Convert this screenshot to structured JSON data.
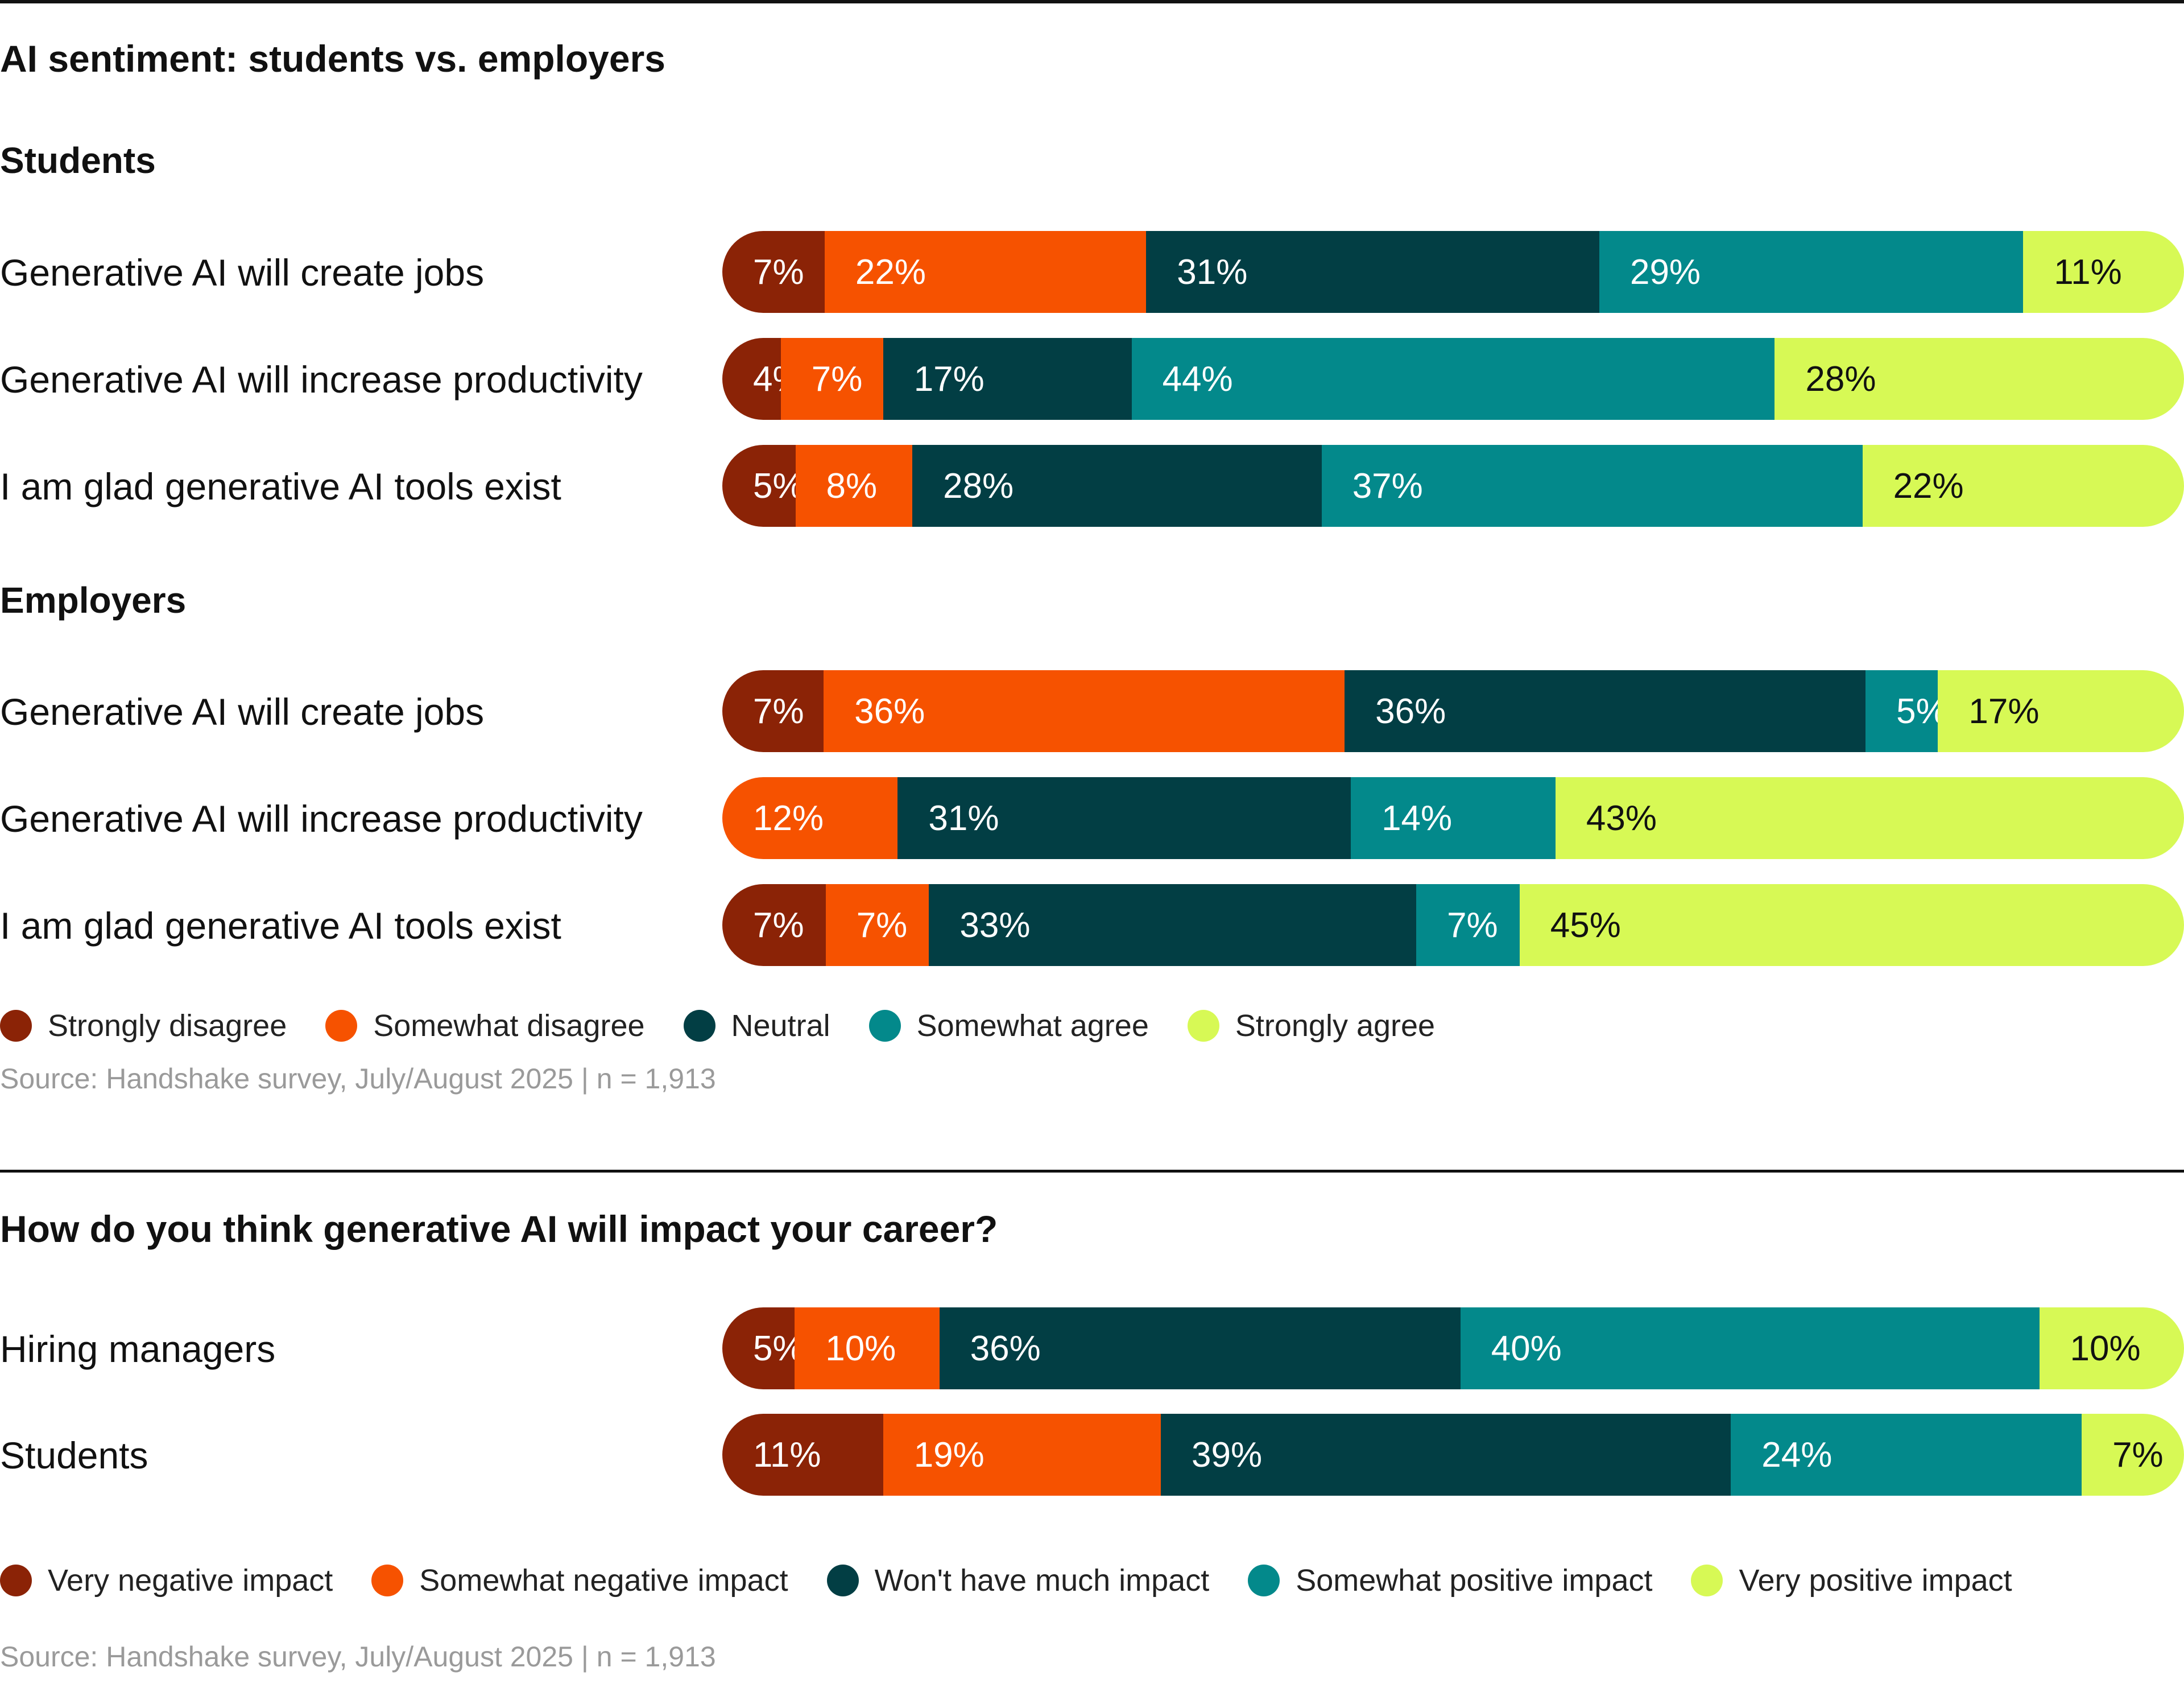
{
  "chart_data": [
    {
      "type": "bar",
      "orientation": "horizontal",
      "stacked": true,
      "normalized": true,
      "title": "AI sentiment: students vs. employers",
      "legend": [
        "Strongly disagree",
        "Somewhat disagree",
        "Neutral",
        "Somewhat agree",
        "Strongly agree"
      ],
      "colors": [
        "#8b2306",
        "#f65200",
        "#023e44",
        "#03898b",
        "#d7f955"
      ],
      "groups": [
        {
          "name": "Students",
          "rows": [
            {
              "label": "Generative AI will create jobs",
              "values": [
                7,
                22,
                31,
                29,
                11
              ]
            },
            {
              "label": "Generative AI will increase productivity",
              "values": [
                4,
                7,
                17,
                44,
                28
              ]
            },
            {
              "label": "I am glad generative AI tools exist",
              "values": [
                5,
                8,
                28,
                37,
                22
              ]
            }
          ]
        },
        {
          "name": "Employers",
          "rows": [
            {
              "label": "Generative AI will create jobs",
              "values": [
                7,
                36,
                36,
                5,
                17
              ]
            },
            {
              "label": "Generative AI will increase productivity",
              "values": [
                0,
                12,
                31,
                14,
                43
              ]
            },
            {
              "label": "I am glad generative AI tools exist",
              "values": [
                7,
                7,
                33,
                7,
                45
              ]
            }
          ]
        }
      ],
      "source": "Source: Handshake survey, July/August 2025 | n = 1,913"
    },
    {
      "type": "bar",
      "orientation": "horizontal",
      "stacked": true,
      "normalized": true,
      "title": "How do you think generative AI will impact your career?",
      "legend": [
        "Very negative impact",
        "Somewhat negative impact",
        "Won't have much impact",
        "Somewhat positive impact",
        "Very positive impact"
      ],
      "colors": [
        "#8b2306",
        "#f65200",
        "#023e44",
        "#03898b",
        "#d7f955"
      ],
      "groups": [
        {
          "name": "",
          "rows": [
            {
              "label": "Hiring managers",
              "values": [
                5,
                10,
                36,
                40,
                10
              ]
            },
            {
              "label": "Students",
              "values": [
                11,
                19,
                39,
                24,
                7
              ]
            }
          ]
        }
      ],
      "source": "Source: Handshake survey, July/August 2025 | n = 1,913"
    }
  ]
}
